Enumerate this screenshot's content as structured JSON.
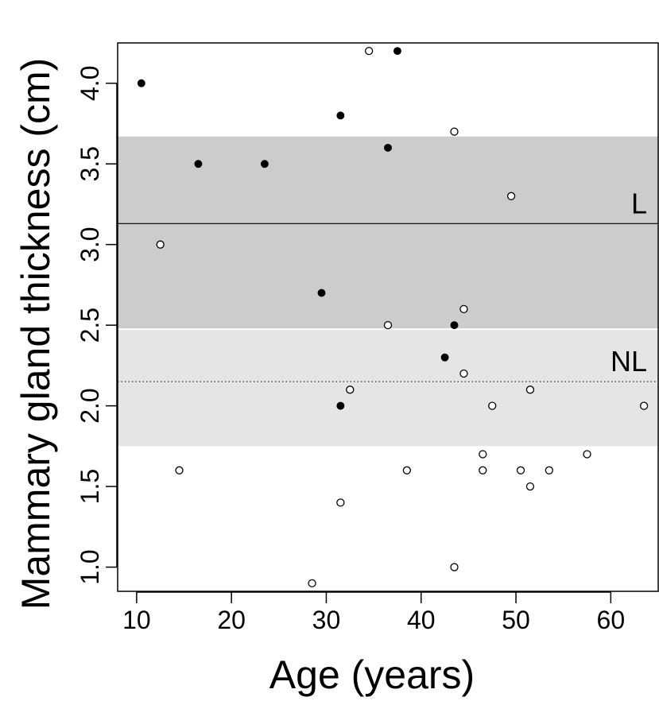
{
  "chart_data": {
    "type": "scatter",
    "title": "",
    "xlabel": "Age (years)",
    "ylabel": "Mammary gland thickness (cm)",
    "xlim": [
      8,
      65
    ],
    "ylim": [
      0.85,
      4.25
    ],
    "xticks": [
      10,
      20,
      30,
      40,
      50,
      60
    ],
    "yticks": [
      1.0,
      1.5,
      2.0,
      2.5,
      3.0,
      3.5,
      4.0
    ],
    "grid": false,
    "bands": [
      {
        "label": "L",
        "low": 2.48,
        "high": 3.67,
        "line": 3.13,
        "line_style": "solid",
        "fill": "#cccccc"
      },
      {
        "label": "NL",
        "low": 1.75,
        "high": 2.47,
        "line": 2.15,
        "line_style": "dotted",
        "fill": "#e5e5e5"
      }
    ],
    "series": [
      {
        "marker": "filled-circle",
        "points": [
          [
            10.5,
            4.0
          ],
          [
            16.5,
            3.5
          ],
          [
            23.5,
            3.5
          ],
          [
            29.5,
            2.7
          ],
          [
            31.5,
            3.8
          ],
          [
            31.5,
            2.0
          ],
          [
            36.5,
            3.6
          ],
          [
            37.5,
            4.2
          ],
          [
            42.5,
            2.3
          ],
          [
            43.5,
            2.5
          ]
        ]
      },
      {
        "marker": "open-circle",
        "points": [
          [
            12.5,
            3.0
          ],
          [
            14.5,
            1.6
          ],
          [
            28.5,
            0.9
          ],
          [
            31.5,
            1.4
          ],
          [
            32.5,
            2.1
          ],
          [
            34.5,
            4.2
          ],
          [
            36.5,
            2.5
          ],
          [
            38.5,
            1.6
          ],
          [
            43.5,
            3.7
          ],
          [
            43.5,
            1.0
          ],
          [
            44.5,
            2.6
          ],
          [
            44.5,
            2.2
          ],
          [
            46.5,
            1.7
          ],
          [
            46.5,
            1.6
          ],
          [
            47.5,
            2.0
          ],
          [
            49.5,
            3.3
          ],
          [
            50.5,
            1.6
          ],
          [
            51.5,
            2.1
          ],
          [
            51.5,
            1.5
          ],
          [
            53.5,
            1.6
          ],
          [
            57.5,
            1.7
          ],
          [
            63.5,
            2.0
          ]
        ]
      }
    ]
  }
}
